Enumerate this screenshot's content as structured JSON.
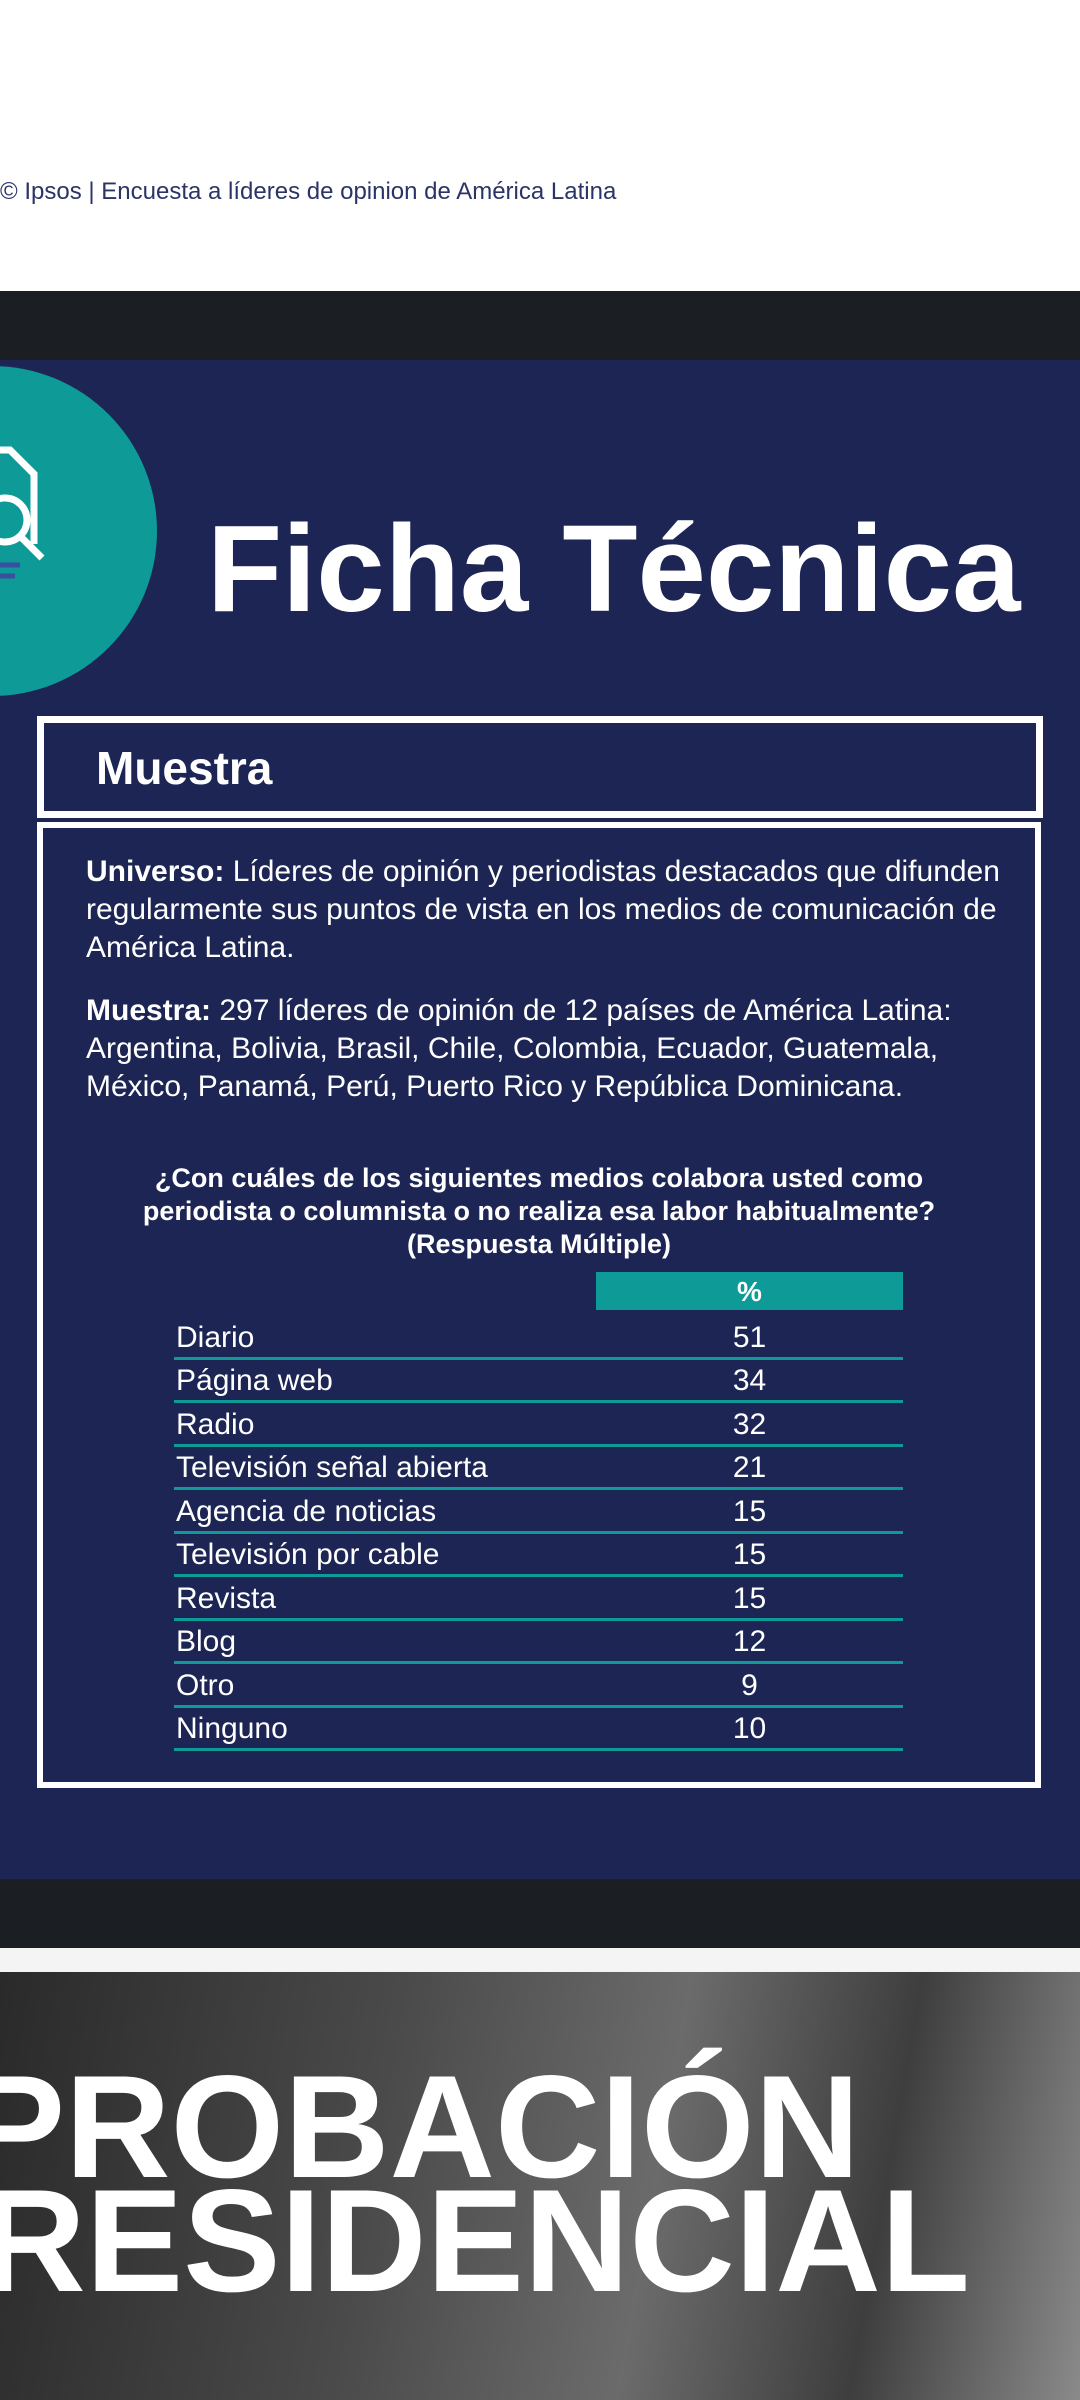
{
  "footer": "© Ipsos | Encuesta a líderes de opinion de América Latina",
  "slide": {
    "title": "Ficha Técnica",
    "section": "Muestra",
    "paragraphs": [
      {
        "label": "Universo:",
        "text": "Líderes de opinión y periodistas destacados que difunden regularmente sus puntos de vista en los medios de comunicación de América Latina."
      },
      {
        "label": "Muestra:",
        "text": "297 líderes de opinión de 12 países de América Latina: Argentina, Bolivia, Brasil, Chile, Colombia, Ecuador, Guatemala, México, Panamá, Perú, Puerto Rico y República Dominicana."
      }
    ],
    "question": [
      "¿Con cuáles de los siguientes medios colabora usted como",
      "periodista o columnista o no realiza esa labor habitualmente?",
      "(Respuesta Múltiple)"
    ],
    "table": {
      "header": "%",
      "rows": [
        [
          "Diario",
          51
        ],
        [
          "Página web",
          34
        ],
        [
          "Radio",
          32
        ],
        [
          "Televisión señal abierta",
          21
        ],
        [
          "Agencia de noticias",
          15
        ],
        [
          "Televisión por cable",
          15
        ],
        [
          "Revista",
          15
        ],
        [
          "Blog",
          12
        ],
        [
          "Otro",
          9
        ],
        [
          "Ninguno",
          10
        ]
      ]
    }
  },
  "banner": [
    "APROBACIÓN",
    "PRESIDENCIAL"
  ]
}
